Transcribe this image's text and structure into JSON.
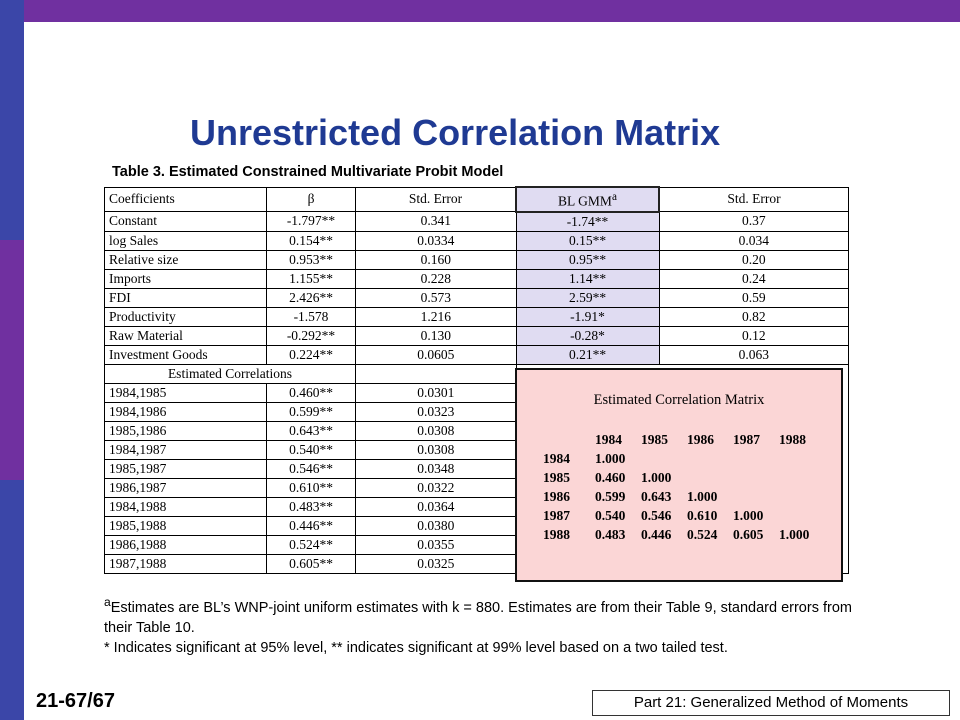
{
  "colors": {
    "bar": "#7030a0",
    "sidebar_blue": "#3b46a8",
    "title": "#1f3a93",
    "highlight": "#e0dcf2",
    "overlay": "#fbd6d6"
  },
  "slide": {
    "title": "Unrestricted Correlation Matrix",
    "number": "21-67/67",
    "footer": "Part 21: Generalized Method of Moments"
  },
  "table": {
    "caption": "Table 3.  Estimated Constrained Multivariate Probit Model",
    "headers": [
      "Coefficients",
      "β",
      "Std.  Error",
      "BL GMM",
      "Std. Error"
    ],
    "header_sup": "a",
    "coef_rows": [
      [
        "Constant",
        "-1.797**",
        "0.341",
        "-1.74**",
        "0.37"
      ],
      [
        "log Sales",
        "0.154**",
        "0.0334",
        "0.15**",
        "0.034"
      ],
      [
        "Relative size",
        "0.953**",
        "0.160",
        "0.95**",
        "0.20"
      ],
      [
        "Imports",
        "1.155**",
        "0.228",
        "1.14**",
        "0.24"
      ],
      [
        "FDI",
        "2.426**",
        "0.573",
        "2.59**",
        "0.59"
      ],
      [
        "Productivity",
        "-1.578",
        "1.216",
        "-1.91*",
        "0.82"
      ],
      [
        "Raw Material",
        "-0.292**",
        "0.130",
        "-0.28*",
        "0.12"
      ],
      [
        "Investment Goods",
        "0.224**",
        "0.0605",
        "0.21**",
        "0.063"
      ]
    ],
    "section_label": "Estimated Correlations",
    "corr_rows": [
      [
        "1984,1985",
        "0.460**",
        "0.0301"
      ],
      [
        "1984,1986",
        "0.599**",
        "0.0323"
      ],
      [
        "1985,1986",
        "0.643**",
        "0.0308"
      ],
      [
        "1984,1987",
        "0.540**",
        "0.0308"
      ],
      [
        "1985,1987",
        "0.546**",
        "0.0348"
      ],
      [
        "1986,1987",
        "0.610**",
        "0.0322"
      ],
      [
        "1984,1988",
        "0.483**",
        "0.0364"
      ],
      [
        "1985,1988",
        "0.446**",
        "0.0380"
      ],
      [
        "1986,1988",
        "0.524**",
        "0.0355"
      ],
      [
        "1987,1988",
        "0.605**",
        "0.0325"
      ]
    ]
  },
  "overlay": {
    "title": "Estimated Correlation Matrix",
    "col_headers": [
      "",
      "1984",
      "1985",
      "1986",
      "1987",
      "1988"
    ],
    "rows": [
      [
        "1984",
        "1.000",
        "",
        "",
        "",
        ""
      ],
      [
        "1985",
        "0.460",
        "1.000",
        "",
        "",
        ""
      ],
      [
        "1986",
        "0.599",
        "0.643",
        "1.000",
        "",
        ""
      ],
      [
        "1987",
        "0.540",
        "0.546",
        "0.610",
        "1.000",
        ""
      ],
      [
        "1988",
        "0.483",
        "0.446",
        "0.524",
        "0.605",
        "1.000"
      ]
    ]
  },
  "footnotes": {
    "a_marker": "a",
    "a_text": "Estimates are BL’s WNP-joint uniform estimates with k = 880.  Estimates are from their Table 9, standard errors from their Table 10.",
    "sig_text": "* Indicates significant at 95% level, ** indicates significant at 99% level based on a two tailed test."
  }
}
